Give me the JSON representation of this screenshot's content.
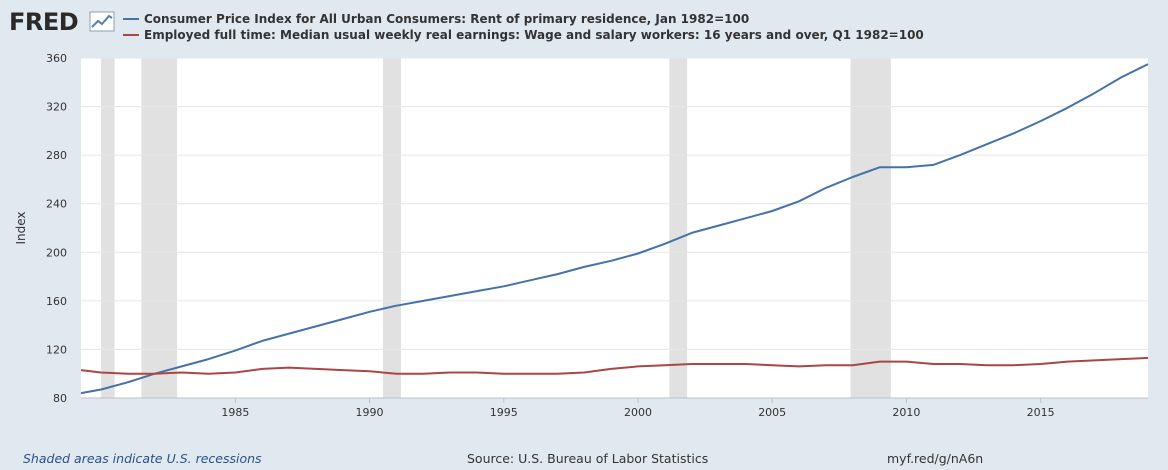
{
  "logo": {
    "text": "FRED"
  },
  "legend": [
    {
      "label": "Consumer Price Index for All Urban Consumers: Rent of primary residence, Jan 1982=100",
      "color": "#4572a7"
    },
    {
      "label": "Employed full time: Median usual weekly real earnings: Wage and salary workers: 16 years and over, Q1 1982=100",
      "color": "#aa4643"
    }
  ],
  "chart_data": {
    "type": "line",
    "title": "",
    "xlabel": "",
    "ylabel": "Index",
    "xlim": [
      1979.25,
      2019.0
    ],
    "ylim": [
      80,
      360
    ],
    "yticks": [
      80,
      120,
      160,
      200,
      240,
      280,
      320,
      360
    ],
    "xticks": [
      1985,
      1990,
      1995,
      2000,
      2005,
      2010,
      2015
    ],
    "recessions": [
      [
        1980.0,
        1980.5
      ],
      [
        1981.5,
        1982.83
      ],
      [
        1990.5,
        1991.17
      ],
      [
        2001.17,
        2001.83
      ],
      [
        2007.92,
        2009.42
      ]
    ],
    "series": [
      {
        "name": "Consumer Price Index for All Urban Consumers: Rent of primary residence, Jan 1982=100",
        "color": "#4572a7",
        "x": [
          1979.25,
          1980,
          1981,
          1982,
          1983,
          1984,
          1985,
          1986,
          1987,
          1988,
          1989,
          1990,
          1991,
          1992,
          1993,
          1994,
          1995,
          1996,
          1997,
          1998,
          1999,
          2000,
          2001,
          2002,
          2003,
          2004,
          2005,
          2006,
          2007,
          2008,
          2009,
          2010,
          2011,
          2012,
          2013,
          2014,
          2015,
          2016,
          2017,
          2018,
          2019.0
        ],
        "values": [
          84,
          87,
          93,
          100,
          106,
          112,
          119,
          127,
          133,
          139,
          145,
          151,
          156,
          160,
          164,
          168,
          172,
          177,
          182,
          188,
          193,
          199,
          207,
          216,
          222,
          228,
          234,
          242,
          253,
          262,
          270,
          270,
          272,
          280,
          289,
          298,
          308,
          319,
          331,
          344,
          355
        ]
      },
      {
        "name": "Employed full time: Median usual weekly real earnings: Wage and salary workers: 16 years and over, Q1 1982=100",
        "color": "#aa4643",
        "x": [
          1979.25,
          1980,
          1981,
          1982,
          1983,
          1984,
          1985,
          1986,
          1987,
          1988,
          1989,
          1990,
          1991,
          1992,
          1993,
          1994,
          1995,
          1996,
          1997,
          1998,
          1999,
          2000,
          2001,
          2002,
          2003,
          2004,
          2005,
          2006,
          2007,
          2008,
          2009,
          2010,
          2011,
          2012,
          2013,
          2014,
          2015,
          2016,
          2017,
          2018,
          2019.0
        ],
        "values": [
          103,
          101,
          100,
          100,
          101,
          100,
          101,
          104,
          105,
          104,
          103,
          102,
          100,
          100,
          101,
          101,
          100,
          100,
          100,
          101,
          104,
          106,
          107,
          108,
          108,
          108,
          107,
          106,
          107,
          107,
          110,
          110,
          108,
          108,
          107,
          107,
          108,
          110,
          111,
          112,
          113
        ]
      }
    ]
  },
  "footer": {
    "note": "Shaded areas indicate U.S. recessions",
    "source": "Source: U.S. Bureau of Labor Statistics",
    "link": "myf.red/g/nA6n"
  }
}
